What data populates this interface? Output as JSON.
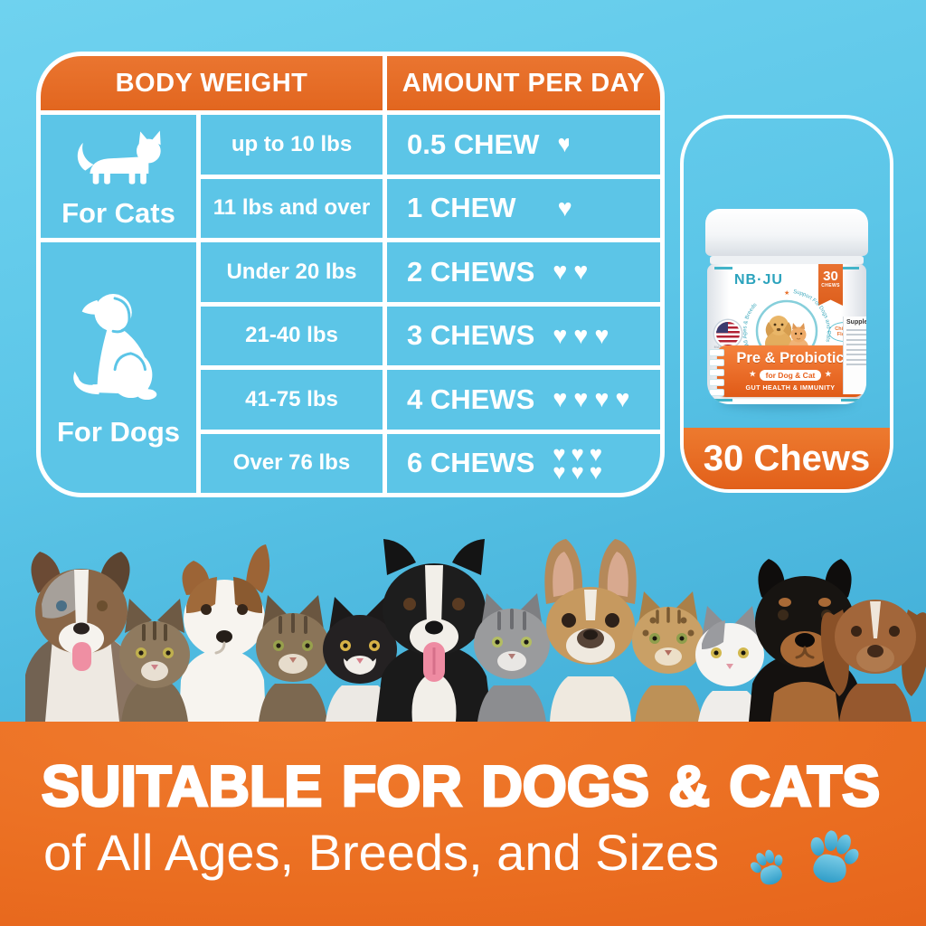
{
  "palette": {
    "sky_blue": "#5cc5e7",
    "orange": "#e8702b",
    "banner_orange": "#ec7124",
    "paw_blue": "#45aed8",
    "white": "#ffffff"
  },
  "dosage_table": {
    "headers": {
      "body_weight": "BODY WEIGHT",
      "amount_per_day": "AMOUNT PER DAY"
    },
    "groups": [
      {
        "label": "For Cats",
        "icon": "cat-icon",
        "rows": [
          {
            "weight": "up to 10 lbs",
            "amount": "0.5 CHEW",
            "hearts": 0.5
          },
          {
            "weight": "11 lbs and over",
            "amount": "1 CHEW",
            "hearts": 1
          }
        ]
      },
      {
        "label": "For Dogs",
        "icon": "dog-icon",
        "rows": [
          {
            "weight": "Under 20 lbs",
            "amount": "2 CHEWS",
            "hearts": 2
          },
          {
            "weight": "21-40 lbs",
            "amount": "3 CHEWS",
            "hearts": 3
          },
          {
            "weight": "41-75 lbs",
            "amount": "4 CHEWS",
            "hearts": 4
          },
          {
            "weight": "Over 76 lbs",
            "amount": "6 CHEWS",
            "hearts": 6
          }
        ]
      }
    ]
  },
  "product_card": {
    "count_label": "30 Chews",
    "jar": {
      "brand": "NB·JU",
      "badge_number": "30",
      "badge_unit": "CHEWS",
      "arc_left": "All Ages & Breeds",
      "arc_right": "Support For Dogs and Cats",
      "flavor_line1": "Chicken",
      "flavor_line2": "Flavor",
      "made_in": "MADE IN USA",
      "title": "Pre & Probiotic",
      "subtitle": "for Dog & Cat",
      "tagline": "GUT HEALTH & IMMUNITY",
      "facts_title": "Supplement"
    }
  },
  "pets": [
    "Australian Shepherd",
    "Jack Russell Terrier",
    "Tabby Kitten",
    "Brown Tabby Cat",
    "Black & White Cat",
    "Border Collie",
    "Grey Tabby Cat",
    "French Bulldog",
    "Bengal Cat",
    "White & Grey Cat",
    "Rottweiler",
    "Brown Spaniel"
  ],
  "banner": {
    "headline": "SUITABLE FOR DOGS & CATS",
    "subheadline": "of All Ages, Breeds, and Sizes"
  }
}
